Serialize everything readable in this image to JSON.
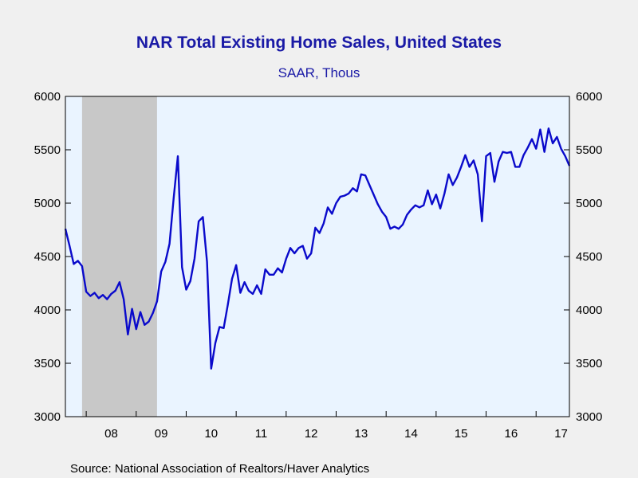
{
  "chart_data": {
    "type": "line",
    "title": "NAR Total Existing Home Sales, United States",
    "subtitle": "SAAR, Thous",
    "source": "Source:  National Association of Realtors/Haver Analytics",
    "ylim": [
      3000,
      6000
    ],
    "y_ticks": [
      3000,
      3500,
      4000,
      4500,
      5000,
      5500,
      6000
    ],
    "x_ticks": [
      {
        "label": "08",
        "year": 2008
      },
      {
        "label": "09",
        "year": 2009
      },
      {
        "label": "10",
        "year": 2010
      },
      {
        "label": "11",
        "year": 2011
      },
      {
        "label": "12",
        "year": 2012
      },
      {
        "label": "13",
        "year": 2013
      },
      {
        "label": "14",
        "year": 2014
      },
      {
        "label": "15",
        "year": 2015
      },
      {
        "label": "16",
        "year": 2016
      },
      {
        "label": "17",
        "year": 2017
      }
    ],
    "x_start": "2007-08",
    "x_end": "2017-09",
    "recession": {
      "start": "2007-12",
      "end": "2009-06"
    },
    "colors": {
      "line": "#0a0acb",
      "plot_bg": "#eaf4ff",
      "recession": "#c8c8c8",
      "title": "#1a1aa6"
    },
    "series": [
      {
        "x_start": "2007-08",
        "frequency": "monthly",
        "values": [
          4760,
          4600,
          4430,
          4460,
          4410,
          4170,
          4130,
          4160,
          4110,
          4140,
          4100,
          4150,
          4180,
          4260,
          4100,
          3770,
          4010,
          3820,
          3980,
          3860,
          3890,
          3970,
          4080,
          4360,
          4450,
          4620,
          5050,
          5440,
          4400,
          4190,
          4270,
          4480,
          4830,
          4870,
          4450,
          3450,
          3690,
          3840,
          3830,
          4050,
          4290,
          4420,
          4160,
          4260,
          4180,
          4150,
          4230,
          4150,
          4380,
          4330,
          4330,
          4390,
          4350,
          4480,
          4580,
          4530,
          4580,
          4600,
          4480,
          4530,
          4770,
          4720,
          4810,
          4960,
          4900,
          5000,
          5060,
          5070,
          5090,
          5140,
          5110,
          5270,
          5260,
          5170,
          5080,
          4990,
          4920,
          4870,
          4760,
          4780,
          4760,
          4800,
          4890,
          4940,
          4980,
          4960,
          4980,
          5120,
          4990,
          5080,
          4950,
          5090,
          5270,
          5170,
          5240,
          5340,
          5450,
          5340,
          5400,
          5270,
          4830,
          5440,
          5470,
          5200,
          5390,
          5480,
          5470,
          5480,
          5340,
          5340,
          5450,
          5520,
          5600,
          5510,
          5690,
          5480,
          5700,
          5560,
          5620,
          5510,
          5440,
          5350
        ]
      }
    ]
  }
}
